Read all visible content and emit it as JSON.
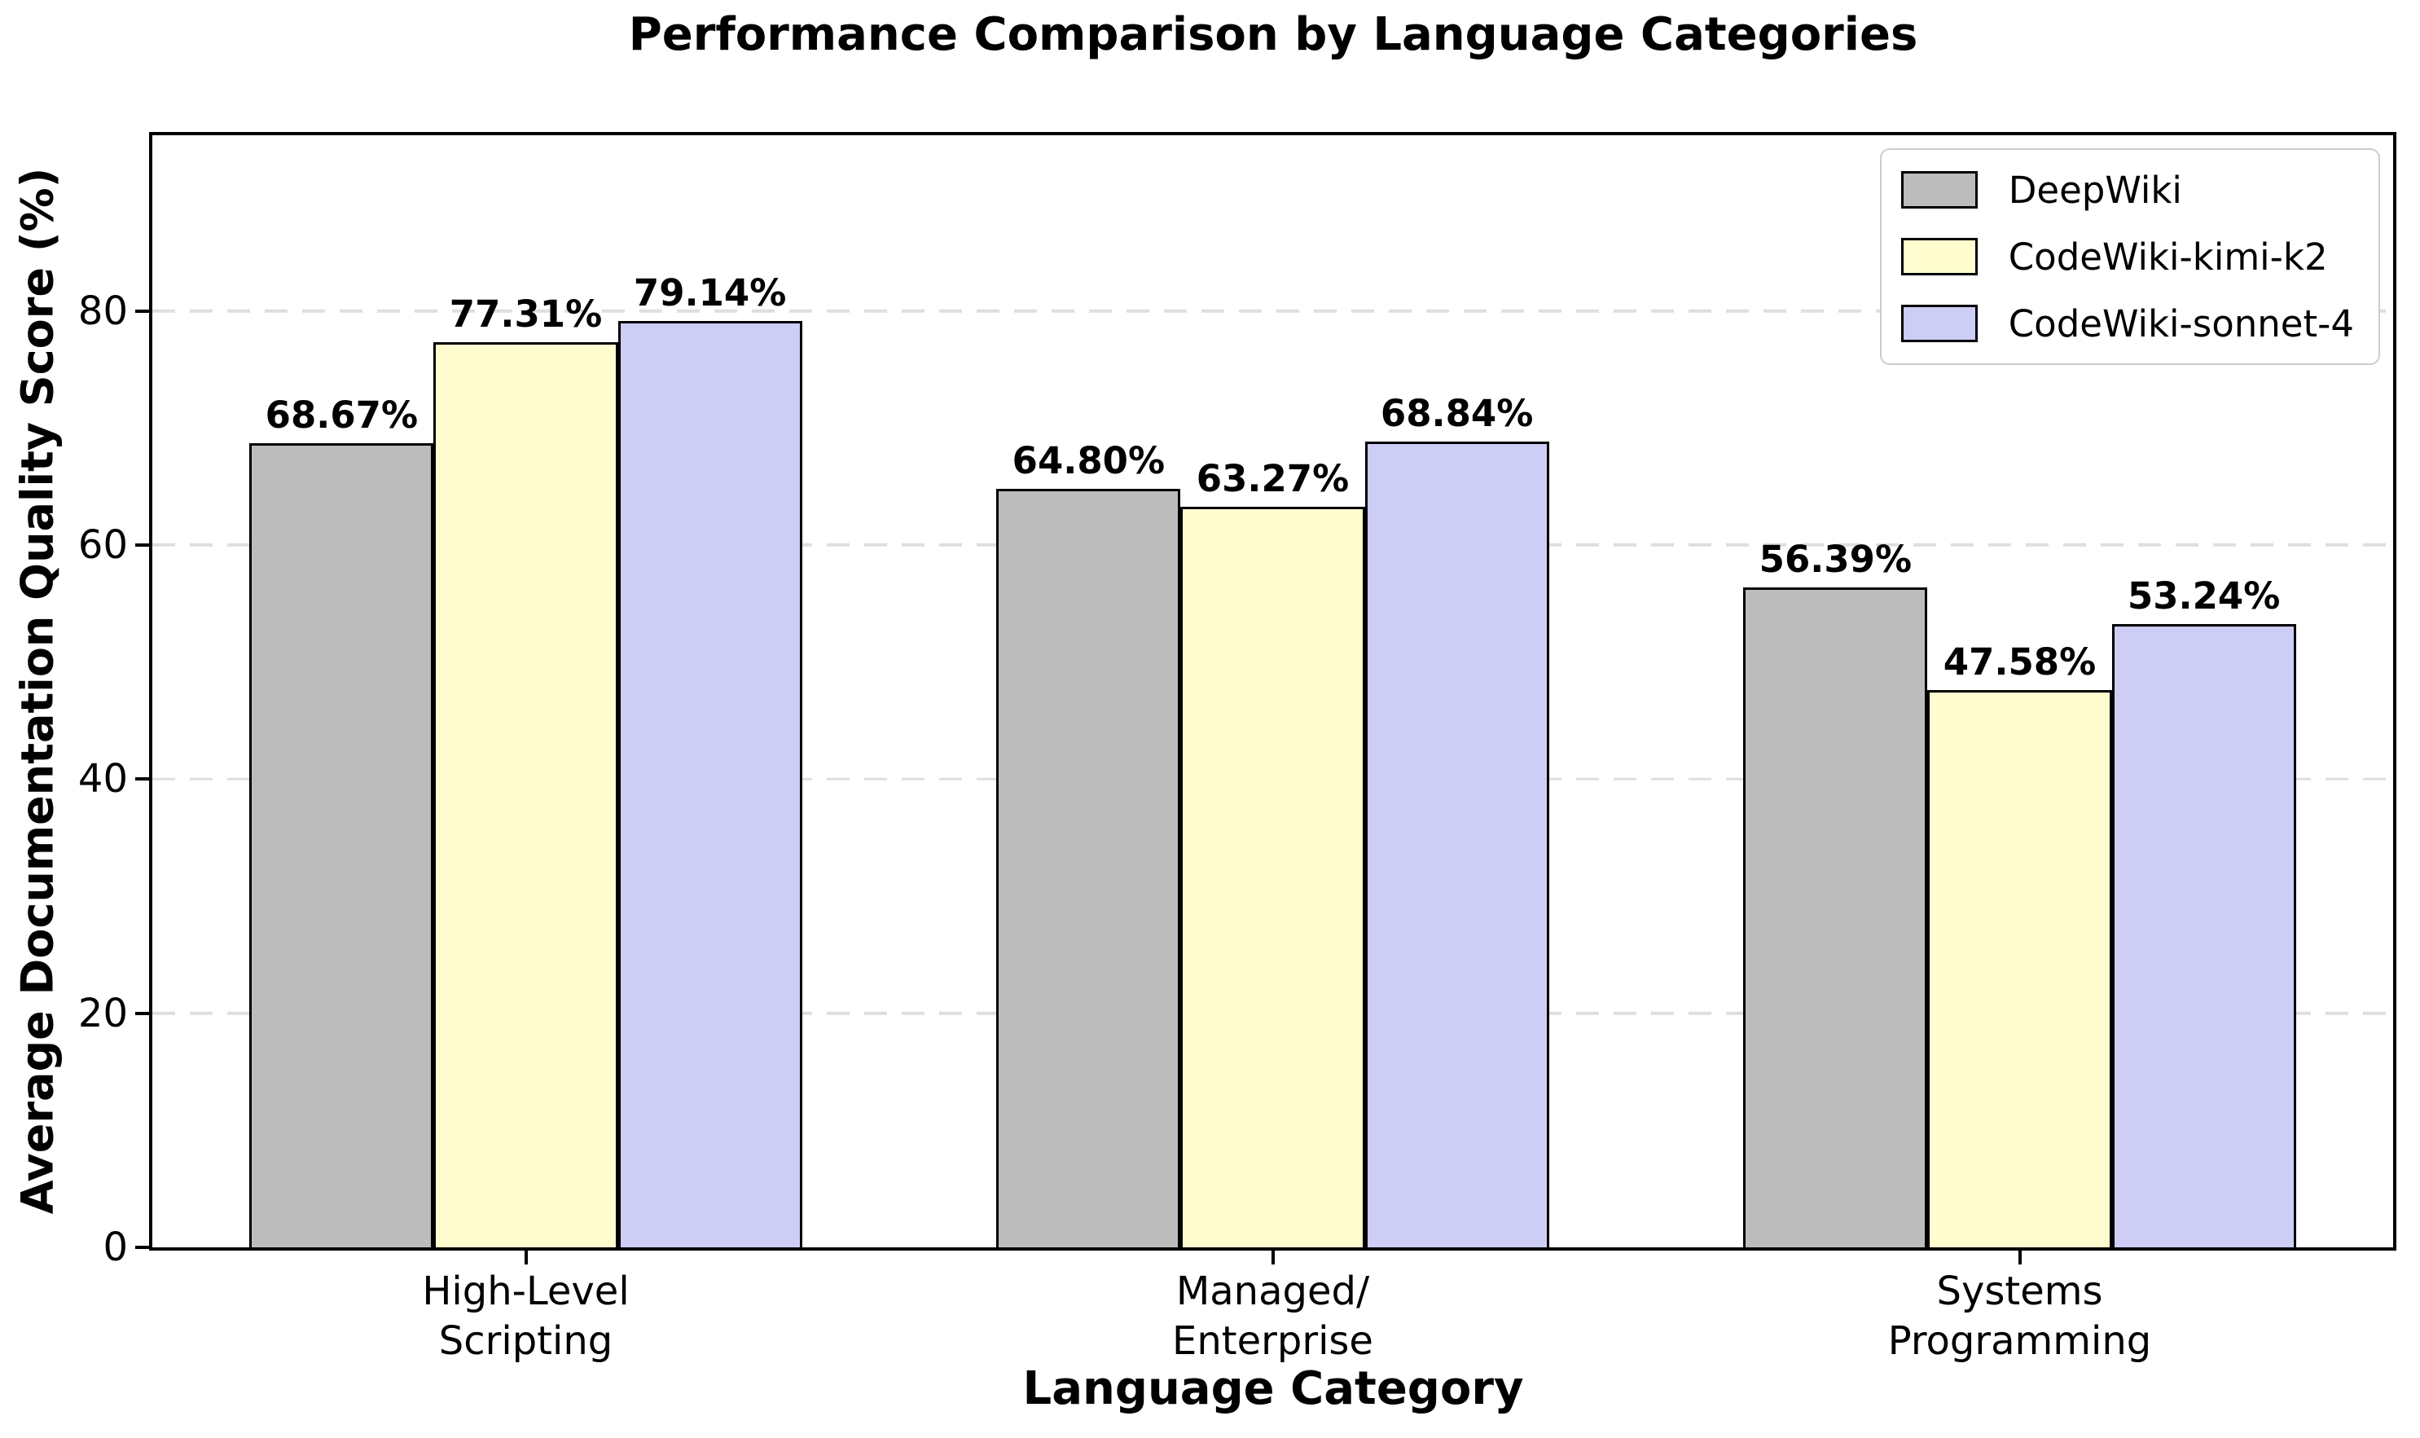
{
  "chart_data": {
    "type": "bar",
    "title": "Performance Comparison by Language Categories",
    "xlabel": "Language Category",
    "ylabel": "Average Documentation Quality Score (%)",
    "categories": [
      "High-Level\nScripting",
      "Managed/\nEnterprise",
      "Systems\nProgramming"
    ],
    "series": [
      {
        "name": "DeepWiki",
        "color": "#bcbcbc",
        "values": [
          68.67,
          64.8,
          56.39
        ],
        "labels": [
          "68.67%",
          "64.80%",
          "56.39%"
        ]
      },
      {
        "name": "CodeWiki-kimi-k2",
        "color": "#fffccf",
        "values": [
          77.31,
          63.27,
          47.58
        ],
        "labels": [
          "77.31%",
          "63.27%",
          "47.58%"
        ]
      },
      {
        "name": "CodeWiki-sonnet-4",
        "color": "#cdcdf5",
        "values": [
          79.14,
          68.84,
          53.24
        ],
        "labels": [
          "79.14%",
          "68.84%",
          "53.24%"
        ]
      }
    ],
    "ylim": [
      0,
      95
    ],
    "yticks": [
      0,
      20,
      40,
      60,
      80
    ],
    "ytick_labels": [
      "0",
      "20",
      "40",
      "60",
      "80"
    ],
    "grid": "horizontal dashed",
    "grid_color": "#dedede",
    "legend_position": "upper right",
    "bar_edge_color": "#000000",
    "bar_group_width_pct": 8.22
  }
}
